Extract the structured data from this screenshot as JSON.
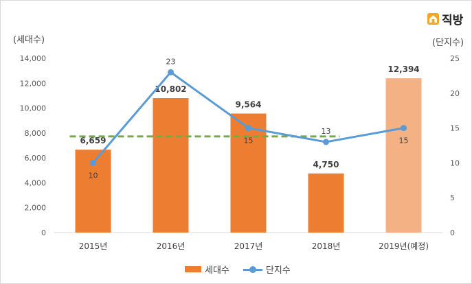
{
  "brand": {
    "logo_text": "직방"
  },
  "chart_data": {
    "type": "bar",
    "categories": [
      "2015년",
      "2016년",
      "2017년",
      "2018년",
      "2019년(예정)"
    ],
    "series": [
      {
        "name": "세대수",
        "type": "bar",
        "axis": "left",
        "values": [
          6659,
          10802,
          9564,
          4750,
          12394
        ],
        "labels": [
          "6,659",
          "10,802",
          "9,564",
          "4,750",
          "12,394"
        ],
        "color": "#ED7D31",
        "highlight_color": "#F4B183",
        "highlight_index": 4
      },
      {
        "name": "단지수",
        "type": "line",
        "axis": "right",
        "values": [
          10,
          23,
          15,
          13,
          15
        ],
        "labels": [
          "10",
          "23",
          "15",
          "13",
          "15"
        ],
        "color": "#5B9BD5"
      }
    ],
    "reference_line": {
      "axis": "left",
      "value": 8000,
      "color": "#70AD47",
      "style": "dashed"
    },
    "left_axis": {
      "label": "(세대수)",
      "ylim": [
        0,
        14000
      ],
      "ticks": [
        "0",
        "2,000",
        "4,000",
        "6,000",
        "8,000",
        "10,000",
        "12,000",
        "14,000"
      ]
    },
    "right_axis": {
      "label": "(단지수)",
      "ylim": [
        0,
        25
      ],
      "ticks": [
        "0",
        "5",
        "10",
        "15",
        "20",
        "25"
      ]
    },
    "legend": {
      "position": "bottom",
      "items": [
        "세대수",
        "단지수"
      ]
    },
    "grid": false
  }
}
